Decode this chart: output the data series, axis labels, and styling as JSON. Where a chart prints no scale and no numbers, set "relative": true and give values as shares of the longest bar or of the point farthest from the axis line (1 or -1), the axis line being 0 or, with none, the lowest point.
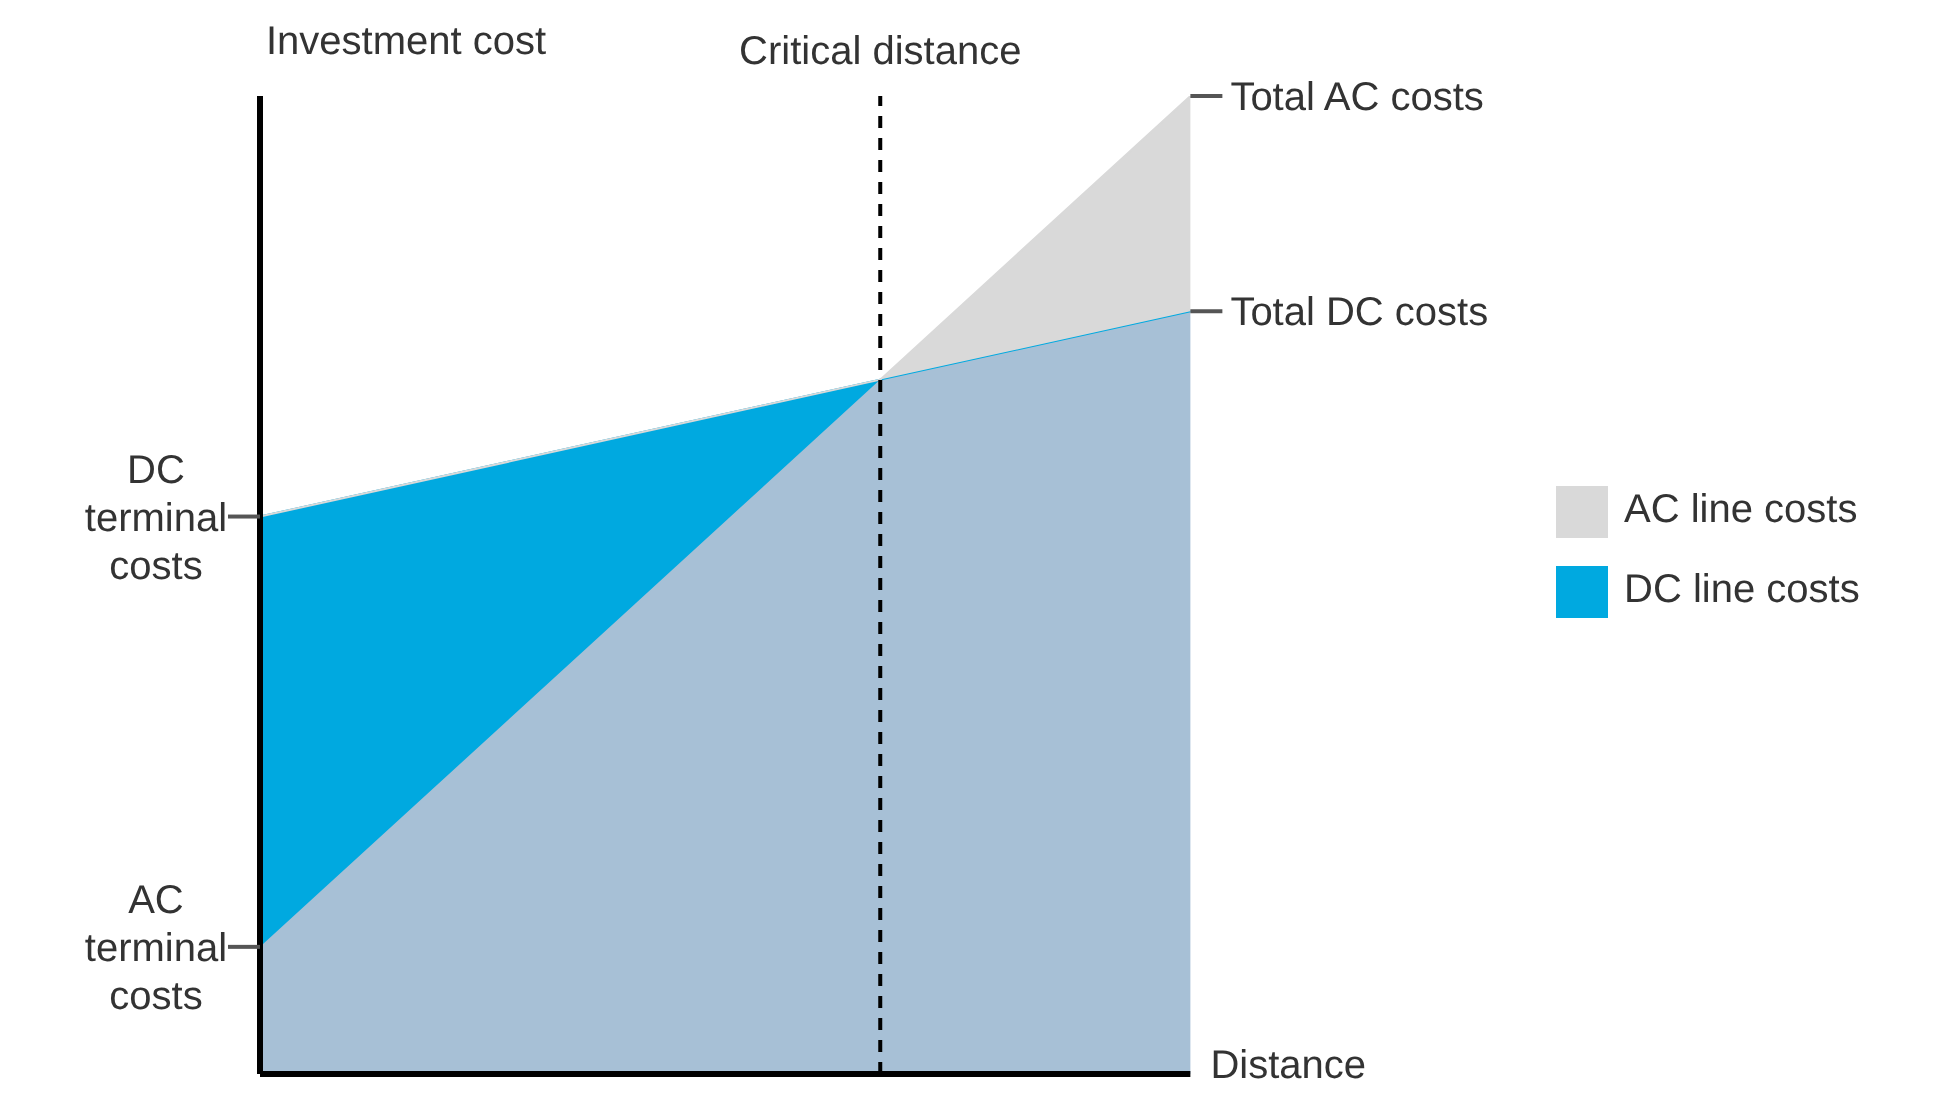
{
  "chart_data": {
    "type": "area",
    "relative": true,
    "stacked": true,
    "ylabel": "Investment cost",
    "categories": [
      null,
      null,
      null,
      null
    ],
    "legend": "right",
    "grid": false,
    "series": [
      {
        "color": "#a7c0d6",
        "values": [
          0.13,
          0.42,
          0.71,
          0.78
        ]
      },
      {
        "name": "DC line costs",
        "color": "#00a9e0",
        "values": [
          0.44,
          0.22,
          0,
          0
        ]
      },
      {
        "name": "AC line costs",
        "color": "#d9d9d9",
        "values": [
          0,
          0,
          0,
          0.22
        ]
      }
    ],
    "annotations": [
      "Critical distance",
      "DC terminal costs",
      "AC terminal costs",
      "Total AC costs",
      "Total DC costs",
      "Distance"
    ]
  }
}
